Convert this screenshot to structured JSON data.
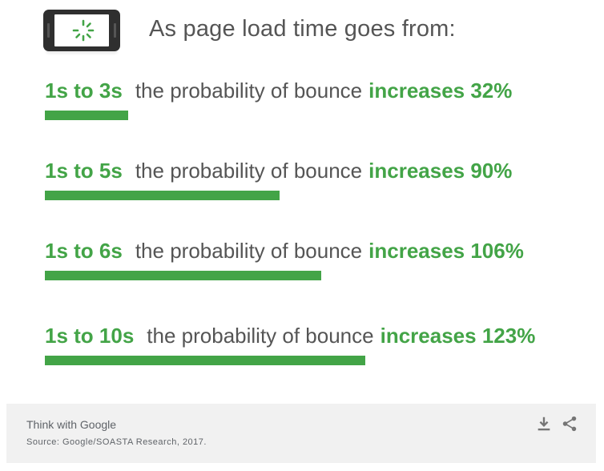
{
  "header": {
    "title": "As page load time goes from:",
    "icon": "phone-loading-icon"
  },
  "chart_data": {
    "type": "bar",
    "orientation": "horizontal",
    "categories": [
      "1s to 3s",
      "1s to 5s",
      "1s to 6s",
      "1s to 10s"
    ],
    "middle_text": "the probability of bounce",
    "labels": [
      "increases 32%",
      "increases 90%",
      "increases 106%",
      "increases 123%"
    ],
    "values": [
      32,
      90,
      106,
      123
    ],
    "unit": "%",
    "color": "#43a447"
  },
  "footer": {
    "brand": "Think with Google",
    "source": "Source: Google/SOASTA Research, 2017.",
    "download_icon": "download-icon",
    "share_icon": "share-icon"
  }
}
